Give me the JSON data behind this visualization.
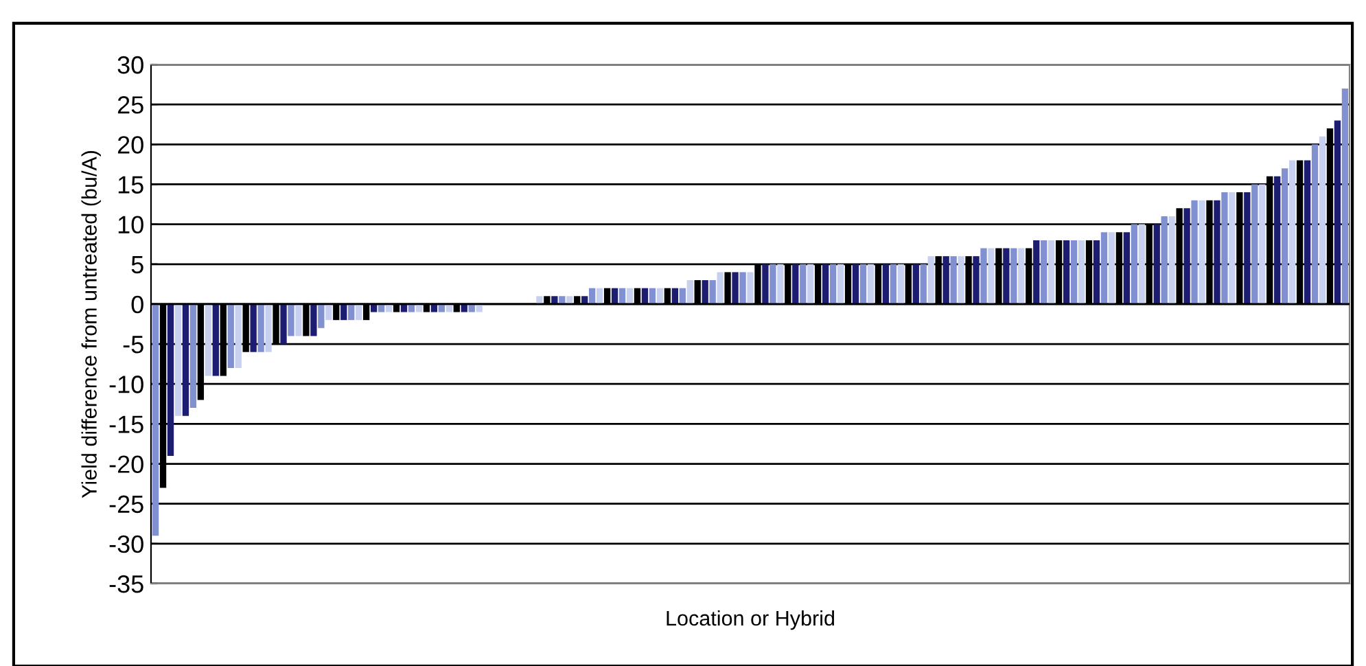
{
  "chart_data": {
    "type": "bar",
    "xlabel": "Location or Hybrid",
    "ylabel": "Yield difference from untreated (bu/A)",
    "categories": [
      null,
      null,
      null,
      null,
      null,
      null,
      null,
      null,
      null,
      null,
      null,
      null,
      null,
      null,
      null,
      null,
      null,
      null,
      null,
      null,
      null,
      null,
      null,
      null,
      null,
      null,
      null,
      null,
      null,
      null,
      null,
      null,
      null,
      null,
      null,
      null,
      null,
      null,
      null,
      null,
      null,
      null,
      null,
      null,
      null,
      null,
      null,
      null,
      null,
      null,
      null,
      null,
      null,
      null,
      null,
      null,
      null,
      null,
      null,
      null,
      null,
      null,
      null,
      null,
      null,
      null,
      null,
      null,
      null,
      null,
      null,
      null,
      null,
      null,
      null,
      null,
      null,
      null,
      null,
      null,
      null,
      null,
      null,
      null,
      null,
      null,
      null,
      null,
      null,
      null,
      null,
      null,
      null,
      null,
      null,
      null,
      null,
      null,
      null,
      null,
      null,
      null,
      null,
      null,
      null,
      null,
      null,
      null,
      null,
      null,
      null,
      null,
      null,
      null,
      null,
      null,
      null,
      null,
      null,
      null,
      null,
      null,
      null,
      null,
      null,
      null,
      null,
      null,
      null,
      null,
      null,
      null,
      null,
      null,
      null,
      null,
      null,
      null,
      null,
      null,
      null,
      null,
      null,
      null,
      null,
      null,
      null,
      null,
      null,
      null,
      null,
      null,
      null,
      null,
      null,
      null,
      null,
      null,
      null
    ],
    "values": [
      -29,
      -23,
      -19,
      -14,
      -14,
      -13,
      -12,
      -9,
      -9,
      -9,
      -8,
      -8,
      -6,
      -6,
      -6,
      -6,
      -5,
      -5,
      -4,
      -4,
      -4,
      -4,
      -3,
      -2,
      -2,
      -2,
      -2,
      -2,
      -2,
      -1,
      -1,
      -1,
      -1,
      -1,
      -1,
      -1,
      -1,
      -1,
      -1,
      -1,
      -1,
      -1,
      -1,
      -1,
      0,
      0,
      0,
      0,
      0,
      0,
      0,
      1,
      1,
      1,
      1,
      1,
      1,
      1,
      2,
      2,
      2,
      2,
      2,
      2,
      2,
      2,
      2,
      2,
      2,
      2,
      2,
      3,
      3,
      3,
      3,
      4,
      4,
      4,
      4,
      4,
      5,
      5,
      5,
      5,
      5,
      5,
      5,
      5,
      5,
      5,
      5,
      5,
      5,
      5,
      5,
      5,
      5,
      5,
      5,
      5,
      5,
      5,
      5,
      6,
      6,
      6,
      6,
      6,
      6,
      6,
      7,
      7,
      7,
      7,
      7,
      7,
      7,
      8,
      8,
      8,
      8,
      8,
      8,
      8,
      8,
      8,
      9,
      9,
      9,
      9,
      10,
      10,
      10,
      10,
      11,
      11,
      12,
      12,
      13,
      13,
      13,
      13,
      14,
      14,
      14,
      14,
      15,
      15,
      16,
      16,
      17,
      18,
      18,
      18,
      20,
      21,
      22,
      23,
      27
    ],
    "colors": [
      "#8090d0",
      "#000000",
      "#1c1c70",
      "#c8d0f0",
      "#1c1c70",
      "#8090d0",
      "#000000",
      "#c8d0f0",
      "#1c1c70",
      "#000000",
      "#8090d0",
      "#c8d0f0",
      "#000000",
      "#1c1c70",
      "#8090d0",
      "#c8d0f0",
      "#000000",
      "#1c1c70",
      "#8090d0",
      "#c8d0f0",
      "#000000",
      "#1c1c70",
      "#8090d0",
      "#c8d0f0",
      "#000000",
      "#1c1c70",
      "#8090d0",
      "#c8d0f0",
      "#000000",
      "#1c1c70",
      "#8090d0",
      "#c8d0f0",
      "#000000",
      "#1c1c70",
      "#8090d0",
      "#c8d0f0",
      "#000000",
      "#1c1c70",
      "#8090d0",
      "#c8d0f0",
      "#000000",
      "#1c1c70",
      "#8090d0",
      "#c8d0f0",
      "#000000",
      "#1c1c70",
      "#8090d0",
      "#c8d0f0",
      "#000000",
      "#1c1c70",
      "#8090d0",
      "#c8d0f0",
      "#000000",
      "#1c1c70",
      "#8090d0",
      "#c8d0f0",
      "#000000",
      "#1c1c70",
      "#8090d0",
      "#c8d0f0",
      "#000000",
      "#1c1c70",
      "#8090d0",
      "#c8d0f0",
      "#000000",
      "#1c1c70",
      "#8090d0",
      "#c8d0f0",
      "#000000",
      "#1c1c70",
      "#8090d0",
      "#c8d0f0",
      "#000000",
      "#1c1c70",
      "#8090d0",
      "#c8d0f0",
      "#000000",
      "#1c1c70",
      "#8090d0",
      "#c8d0f0",
      "#000000",
      "#1c1c70",
      "#8090d0",
      "#c8d0f0",
      "#000000",
      "#1c1c70",
      "#8090d0",
      "#c8d0f0",
      "#000000",
      "#1c1c70",
      "#8090d0",
      "#c8d0f0",
      "#000000",
      "#1c1c70",
      "#8090d0",
      "#c8d0f0",
      "#000000",
      "#1c1c70",
      "#8090d0",
      "#c8d0f0",
      "#000000",
      "#1c1c70",
      "#8090d0",
      "#c8d0f0",
      "#000000",
      "#1c1c70",
      "#8090d0",
      "#c8d0f0",
      "#000000",
      "#1c1c70",
      "#8090d0",
      "#c8d0f0",
      "#000000",
      "#1c1c70",
      "#8090d0",
      "#c8d0f0",
      "#000000",
      "#1c1c70",
      "#8090d0",
      "#c8d0f0",
      "#000000",
      "#1c1c70",
      "#8090d0",
      "#c8d0f0",
      "#000000",
      "#1c1c70",
      "#8090d0",
      "#c8d0f0",
      "#000000",
      "#1c1c70",
      "#8090d0",
      "#c8d0f0",
      "#000000",
      "#1c1c70",
      "#8090d0",
      "#c8d0f0",
      "#000000",
      "#1c1c70",
      "#8090d0",
      "#c8d0f0",
      "#000000",
      "#1c1c70",
      "#8090d0",
      "#c8d0f0",
      "#000000",
      "#1c1c70",
      "#8090d0",
      "#c8d0f0",
      "#000000",
      "#1c1c70",
      "#8090d0",
      "#c8d0f0",
      "#000000",
      "#1c1c70",
      "#8090d0",
      "#c8d0f0",
      "#000000",
      "#1c1c70",
      "#8090d0"
    ],
    "ylim": [
      -35,
      30
    ],
    "yticks": [
      -35,
      -30,
      -25,
      -20,
      -15,
      -10,
      -5,
      0,
      5,
      10,
      15,
      20,
      25,
      30
    ],
    "grid": "y",
    "tick_labels": "y"
  }
}
